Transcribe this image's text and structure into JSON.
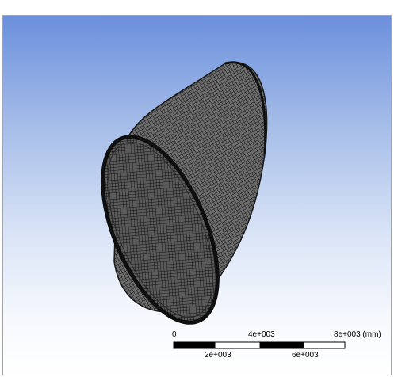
{
  "header": {
    "title": ""
  },
  "scale_bar": {
    "top_labels": [
      "0",
      "4e+003",
      "8e+003 (mm)"
    ],
    "bottom_labels": [
      "2e+003",
      "6e+003"
    ]
  },
  "colors": {
    "mesh_line": "#1a1a1a",
    "scale_fill": "#000000",
    "background_top": "#6b8fdc",
    "background_bottom": "#ffffff"
  }
}
